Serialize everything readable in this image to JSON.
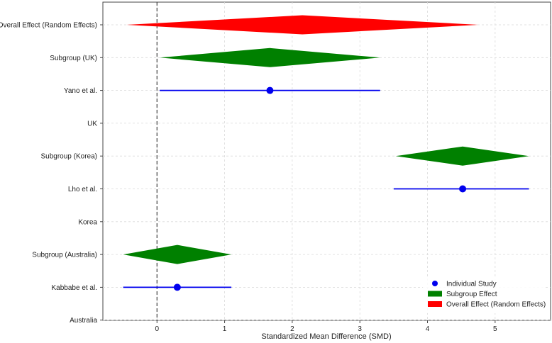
{
  "chart_data": {
    "type": "forest",
    "xlabel": "Standardized Mean Difference (SMD)",
    "xlim": [
      -0.8,
      5.82
    ],
    "xticks": [
      0,
      1,
      2,
      3,
      4,
      5
    ],
    "reference_line": 0,
    "grid": true,
    "legend_position": "bottom-right",
    "rows": [
      {
        "label": "Overall Effect (Random Effects)",
        "kind": "overall",
        "estimate": 2.15,
        "lower": -0.45,
        "upper": 4.75
      },
      {
        "label": "Subgroup (UK)",
        "kind": "subgroup",
        "estimate": 1.67,
        "lower": 0.04,
        "upper": 3.3
      },
      {
        "label": "Yano et al.",
        "kind": "study",
        "estimate": 1.67,
        "lower": 0.04,
        "upper": 3.3
      },
      {
        "label": "UK",
        "kind": "header"
      },
      {
        "label": "Subgroup (Korea)",
        "kind": "subgroup",
        "estimate": 4.52,
        "lower": 3.53,
        "upper": 5.5
      },
      {
        "label": "Lho et al.",
        "kind": "study",
        "estimate": 4.52,
        "lower": 3.5,
        "upper": 5.5
      },
      {
        "label": "Korea",
        "kind": "header"
      },
      {
        "label": "Subgroup (Australia)",
        "kind": "subgroup",
        "estimate": 0.3,
        "lower": -0.5,
        "upper": 1.1
      },
      {
        "label": "Kabbabe et al.",
        "kind": "study",
        "estimate": 0.3,
        "lower": -0.5,
        "upper": 1.1
      },
      {
        "label": "Australia",
        "kind": "header"
      }
    ],
    "legend": [
      {
        "label": "Individual Study",
        "kind": "study"
      },
      {
        "label": "Subgroup Effect",
        "kind": "subgroup"
      },
      {
        "label": "Overall Effect (Random Effects)",
        "kind": "overall"
      }
    ],
    "colors": {
      "study": "#0000ee",
      "subgroup": "#008000",
      "overall": "#ff0000",
      "grid": "#d9d9d9",
      "axis": "#444444",
      "reference": "#333333"
    }
  }
}
